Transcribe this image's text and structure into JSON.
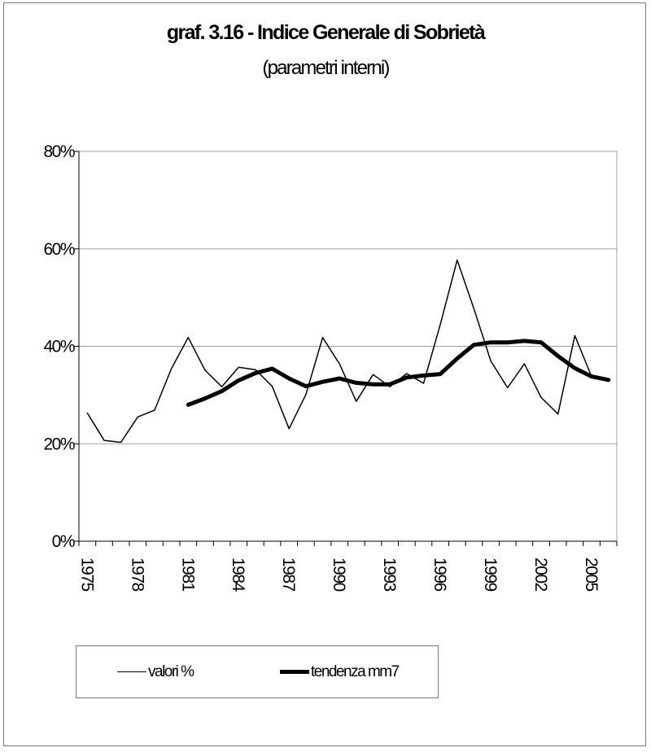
{
  "chart_data": {
    "type": "line",
    "title": "graf. 3.16 - Indice Generale di Sobrietà",
    "subtitle": "(parametri interni)",
    "xlabel": "",
    "ylabel": "",
    "ylim": [
      0,
      0.8
    ],
    "yticks": [
      0,
      0.2,
      0.4,
      0.6,
      0.8
    ],
    "ytick_labels": [
      "0%",
      "20%",
      "40%",
      "60%",
      "80%"
    ],
    "x": [
      1975,
      1976,
      1977,
      1978,
      1979,
      1980,
      1981,
      1982,
      1983,
      1984,
      1985,
      1986,
      1987,
      1988,
      1989,
      1990,
      1991,
      1992,
      1993,
      1994,
      1995,
      1996,
      1997,
      1998,
      1999,
      2000,
      2001,
      2002,
      2003,
      2004,
      2005,
      2006
    ],
    "xtick_labels": [
      "1975",
      "1978",
      "1981",
      "1984",
      "1987",
      "1990",
      "1993",
      "1996",
      "1999",
      "2002",
      "2005"
    ],
    "xtick_years": [
      1975,
      1978,
      1981,
      1984,
      1987,
      1990,
      1993,
      1996,
      1999,
      2002,
      2005
    ],
    "grid": true,
    "legend_position": "bottom",
    "series": [
      {
        "name": "valori %",
        "style": "thin",
        "values": [
          0.263,
          0.207,
          0.203,
          0.255,
          0.269,
          0.354,
          0.418,
          0.351,
          0.317,
          0.357,
          0.352,
          0.318,
          0.231,
          0.301,
          0.418,
          0.364,
          0.287,
          0.342,
          0.317,
          0.344,
          0.324,
          0.445,
          0.577,
          0.477,
          0.37,
          0.315,
          0.364,
          0.295,
          0.261,
          0.422,
          0.338,
          0.33
        ]
      },
      {
        "name": "tendenza mm7",
        "style": "thick",
        "values": [
          null,
          null,
          null,
          null,
          null,
          null,
          0.28,
          0.293,
          0.308,
          0.33,
          0.345,
          0.354,
          0.334,
          0.318,
          0.327,
          0.334,
          0.325,
          0.322,
          0.322,
          0.336,
          0.34,
          0.343,
          0.375,
          0.403,
          0.408,
          0.408,
          0.411,
          0.408,
          0.38,
          0.355,
          0.338,
          0.331
        ]
      }
    ],
    "colors": {
      "line": "#000000",
      "grid": "#a0a0a0",
      "axis": "#000000"
    }
  }
}
